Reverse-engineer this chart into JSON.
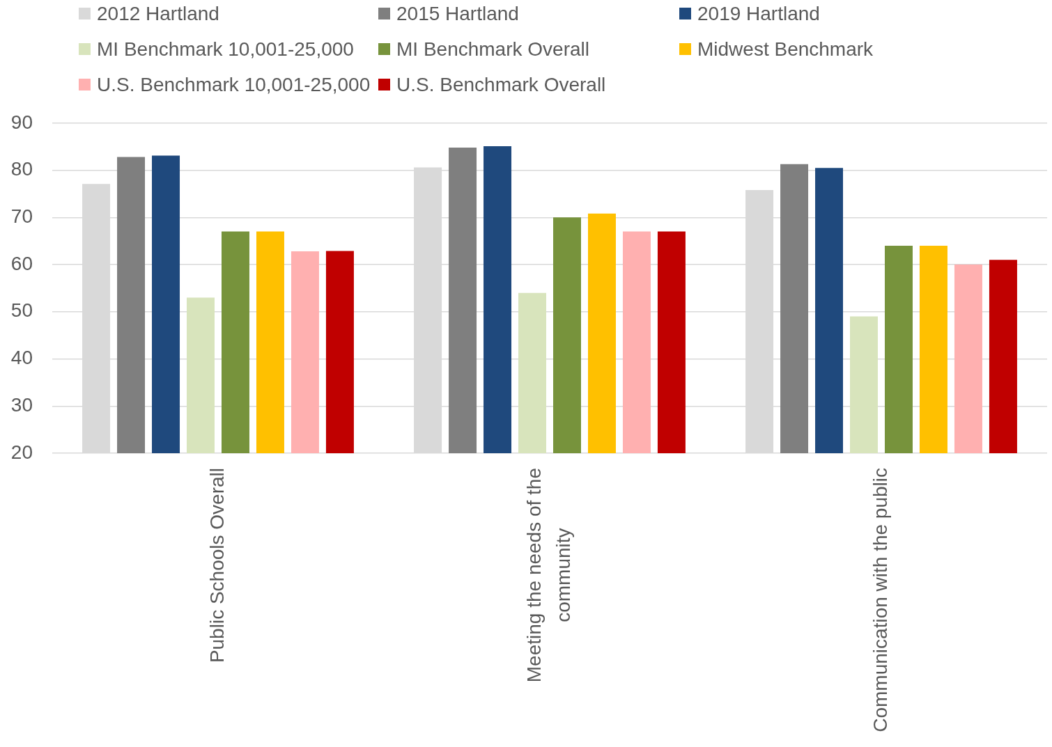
{
  "chart_data": {
    "type": "bar",
    "categories": [
      "Public Schools Overall",
      "Meeting the needs of the community",
      "Communication with the public"
    ],
    "series": [
      {
        "name": "2012 Hartland",
        "color": "#d9d9d9",
        "values": [
          77.1,
          80.6,
          75.8
        ]
      },
      {
        "name": "2015 Hartland",
        "color": "#7f7f7f",
        "values": [
          82.8,
          84.8,
          81.3
        ]
      },
      {
        "name": "2019 Hartland",
        "color": "#1f497d",
        "values": [
          83.1,
          85.1,
          80.5
        ]
      },
      {
        "name": "MI Benchmark 10,001-25,000",
        "color": "#d8e4bc",
        "values": [
          53,
          54,
          49
        ]
      },
      {
        "name": "MI Benchmark Overall",
        "color": "#77933c",
        "values": [
          67,
          70,
          64
        ]
      },
      {
        "name": "Midwest Benchmark",
        "color": "#ffc000",
        "values": [
          67,
          70.8,
          64
        ]
      },
      {
        "name": "U.S. Benchmark 10,001-25,000",
        "color": "#ffb0b0",
        "values": [
          62.8,
          67,
          60
        ]
      },
      {
        "name": "U.S. Benchmark Overall",
        "color": "#c00000",
        "values": [
          62.9,
          67,
          61
        ]
      }
    ],
    "ylim": [
      20,
      90
    ],
    "yticks": [
      20,
      30,
      40,
      50,
      60,
      70,
      80,
      90
    ],
    "grid": "y",
    "legend": "top"
  }
}
